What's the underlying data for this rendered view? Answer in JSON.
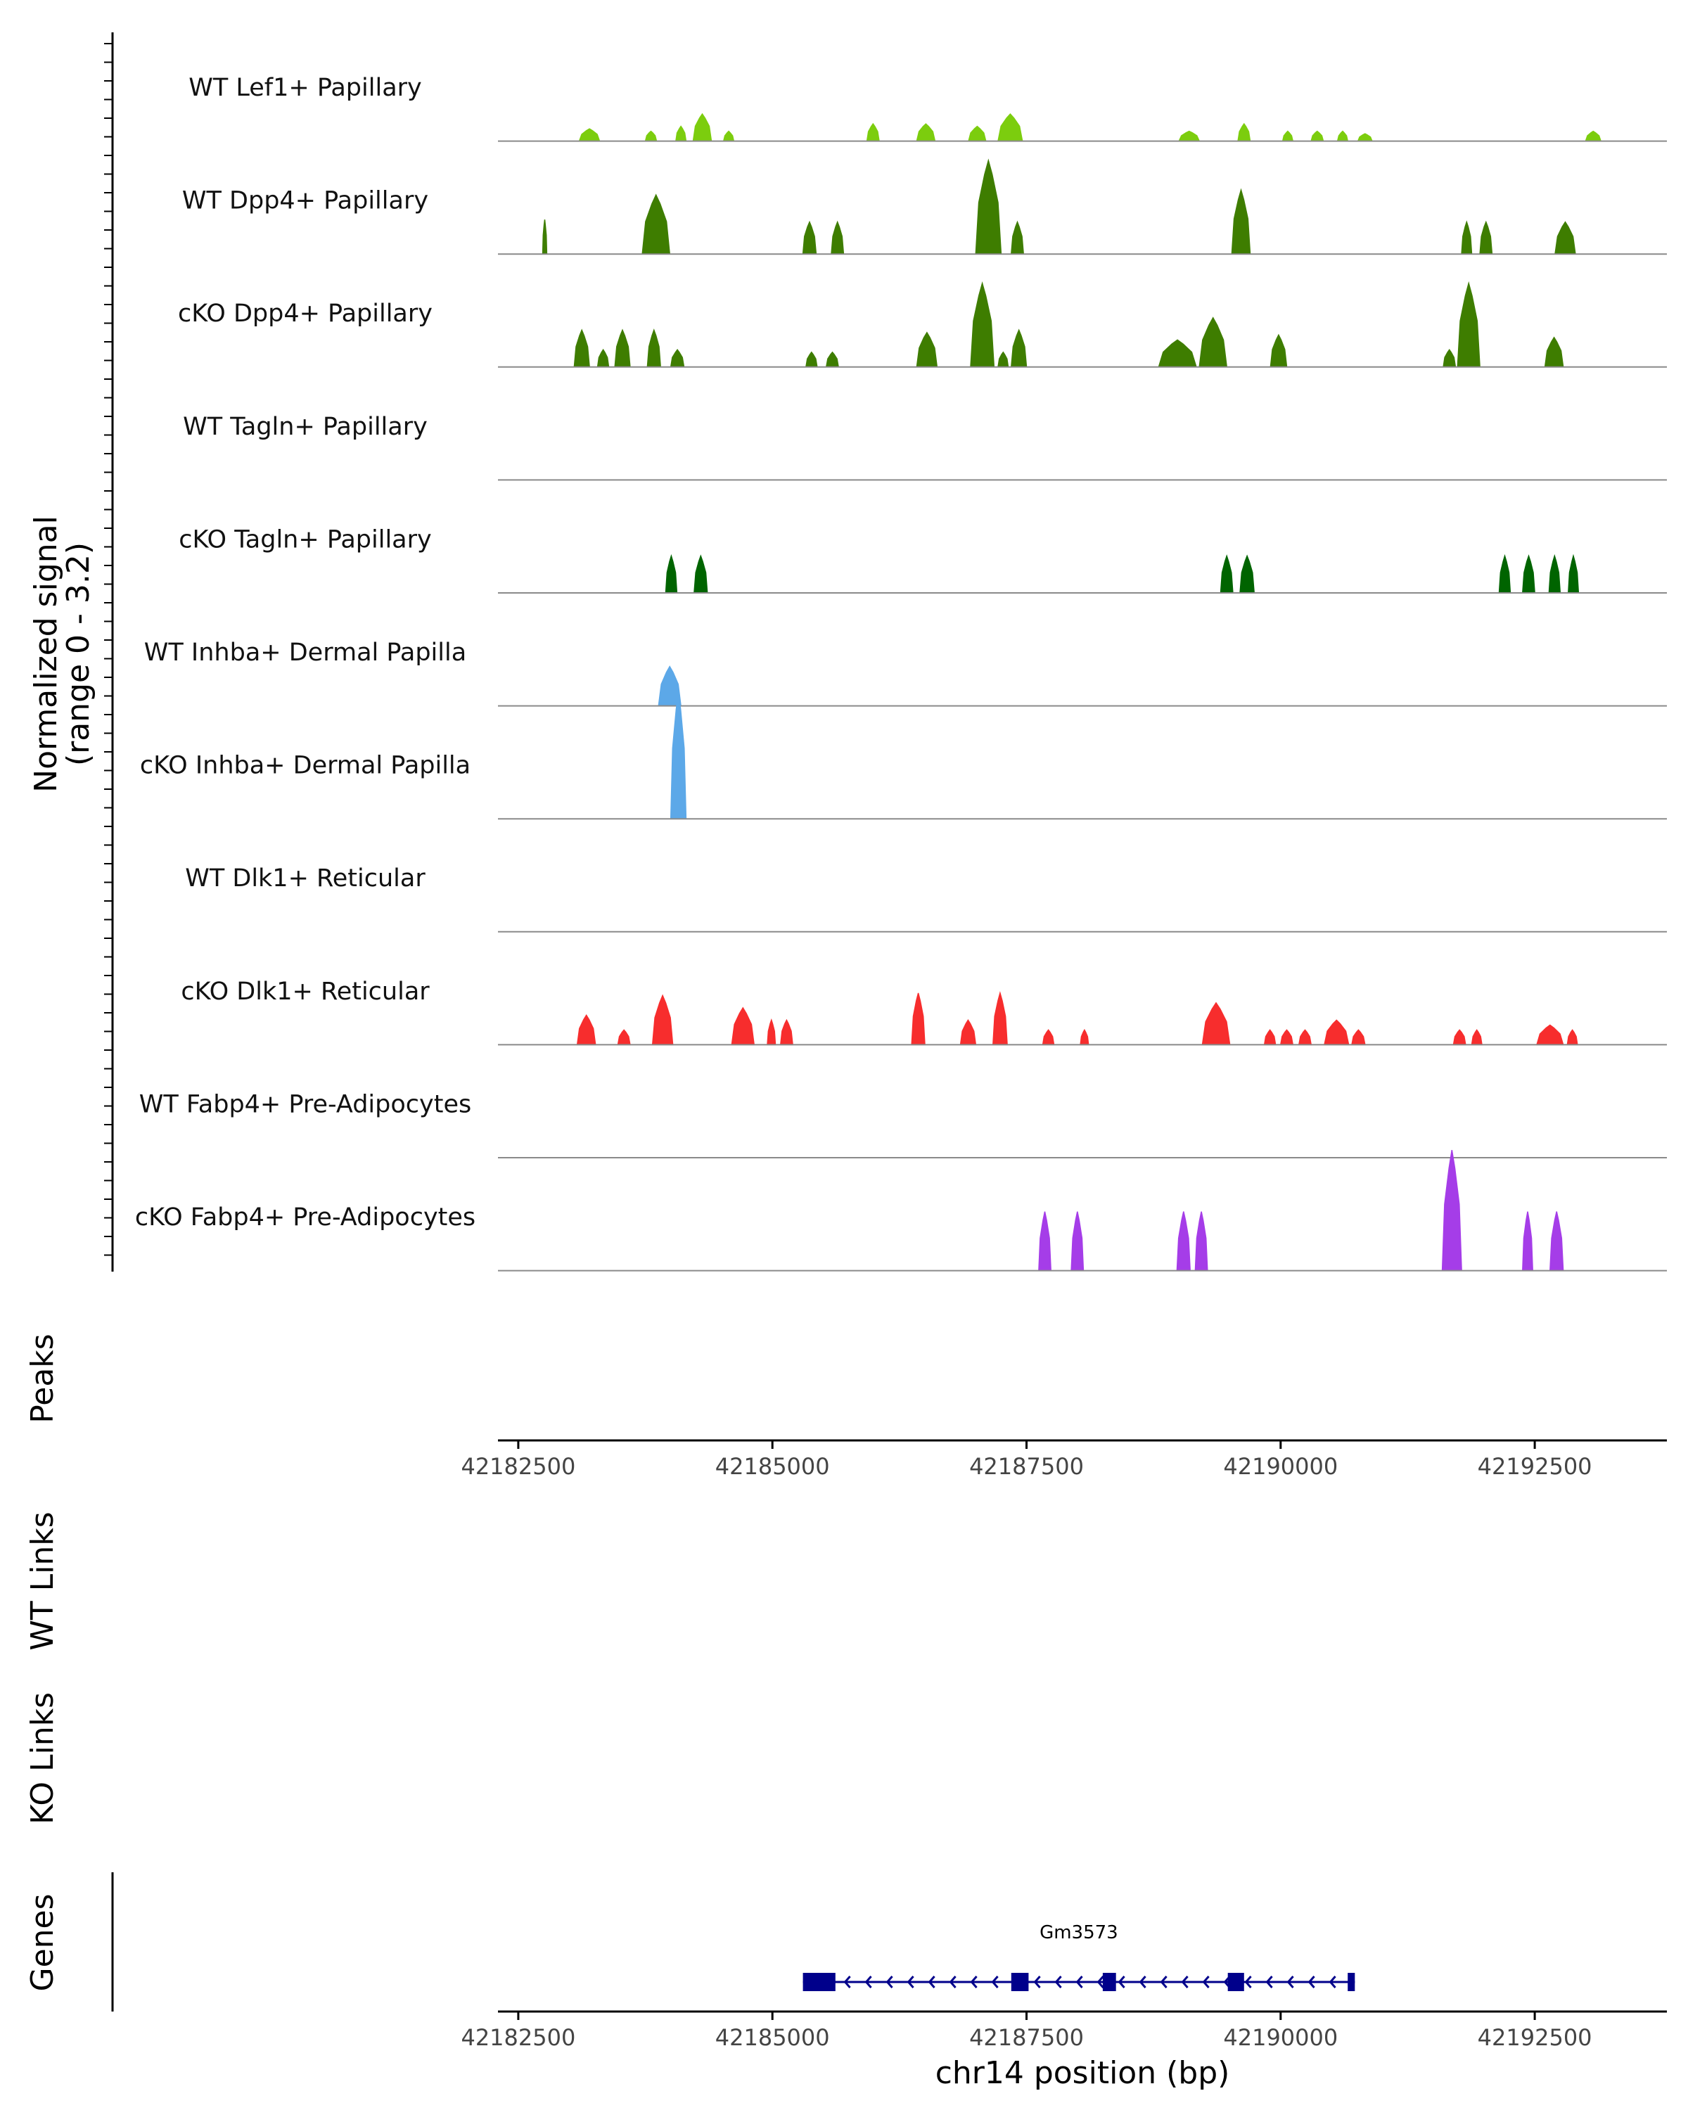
{
  "chart_data": {
    "type": "area",
    "title": "",
    "signal_axis": {
      "label_line1": "Normalized signal",
      "label_line2": "(range 0 - 3.2)",
      "range": [
        0,
        3.2
      ]
    },
    "x": {
      "min": 42182300,
      "max": 42193800,
      "ticks": [
        42182500,
        42185000,
        42187500,
        42190000,
        42192500
      ],
      "tick_labels": [
        "42182500",
        "42185000",
        "42187500",
        "42190000",
        "42192500"
      ],
      "xlabel": "chr14 position (bp)"
    },
    "tracks": [
      {
        "name": "WT Lef1+ Papillary",
        "color": "#7CCD0E",
        "peaks": [
          [
            42183100,
            42183300,
            0.25
          ],
          [
            42183750,
            42183860,
            0.2
          ],
          [
            42184050,
            42184150,
            0.3
          ],
          [
            42184220,
            42184400,
            0.55
          ],
          [
            42184520,
            42184620,
            0.2
          ],
          [
            42185930,
            42186050,
            0.35
          ],
          [
            42186420,
            42186600,
            0.35
          ],
          [
            42186930,
            42187100,
            0.3
          ],
          [
            42187220,
            42187460,
            0.55
          ],
          [
            42189000,
            42189200,
            0.2
          ],
          [
            42189580,
            42189700,
            0.35
          ],
          [
            42190020,
            42190120,
            0.2
          ],
          [
            42190300,
            42190420,
            0.2
          ],
          [
            42190560,
            42190660,
            0.2
          ],
          [
            42190760,
            42190900,
            0.15
          ],
          [
            42193000,
            42193150,
            0.2
          ]
        ]
      },
      {
        "name": "WT Dpp4+ Papillary",
        "color": "#3E7D00",
        "peaks": [
          [
            42182740,
            42182780,
            0.7
          ],
          [
            42183720,
            42183990,
            1.2
          ],
          [
            42185300,
            42185430,
            0.65
          ],
          [
            42185580,
            42185700,
            0.65
          ],
          [
            42187000,
            42187250,
            1.9
          ],
          [
            42187350,
            42187470,
            0.65
          ],
          [
            42189520,
            42189700,
            1.3
          ],
          [
            42191780,
            42191880,
            0.65
          ],
          [
            42191960,
            42192080,
            0.65
          ],
          [
            42192700,
            42192900,
            0.65
          ]
        ]
      },
      {
        "name": "cKO Dpp4+ Papillary",
        "color": "#3E7D00",
        "peaks": [
          [
            42183050,
            42183200,
            0.75
          ],
          [
            42183280,
            42183390,
            0.35
          ],
          [
            42183450,
            42183600,
            0.75
          ],
          [
            42183770,
            42183900,
            0.75
          ],
          [
            42184000,
            42184130,
            0.35
          ],
          [
            42185330,
            42185440,
            0.3
          ],
          [
            42185530,
            42185650,
            0.3
          ],
          [
            42186420,
            42186620,
            0.7
          ],
          [
            42186950,
            42187180,
            1.7
          ],
          [
            42187220,
            42187320,
            0.3
          ],
          [
            42187350,
            42187500,
            0.75
          ],
          [
            42188800,
            42189170,
            0.55
          ],
          [
            42189200,
            42189470,
            1.0
          ],
          [
            42189900,
            42190060,
            0.65
          ],
          [
            42191600,
            42191720,
            0.35
          ],
          [
            42191740,
            42191960,
            1.7
          ],
          [
            42192600,
            42192780,
            0.6
          ]
        ]
      },
      {
        "name": "WT Tagln+ Papillary",
        "color": "#006400",
        "peaks": []
      },
      {
        "name": "cKO Tagln+ Papillary",
        "color": "#006400",
        "peaks": [
          [
            42183950,
            42184060,
            0.75
          ],
          [
            42184230,
            42184360,
            0.75
          ],
          [
            42189410,
            42189530,
            0.75
          ],
          [
            42189600,
            42189740,
            0.75
          ],
          [
            42192150,
            42192260,
            0.75
          ],
          [
            42192380,
            42192500,
            0.75
          ],
          [
            42192640,
            42192750,
            0.75
          ],
          [
            42192830,
            42192930,
            0.75
          ]
        ]
      },
      {
        "name": "WT Inhba+ Dermal Papilla",
        "color": "#5CA8E8",
        "peaks": [
          [
            42183880,
            42184100,
            0.8
          ]
        ]
      },
      {
        "name": "cKO Inhba+ Dermal Papilla",
        "color": "#5CA8E8",
        "peaks": [
          [
            42184000,
            42184150,
            2.6
          ]
        ]
      },
      {
        "name": "WT Dlk1+ Reticular",
        "color": "#F72D2D",
        "peaks": []
      },
      {
        "name": "cKO Dlk1+ Reticular",
        "color": "#F72D2D",
        "peaks": [
          [
            42183080,
            42183260,
            0.6
          ],
          [
            42183480,
            42183600,
            0.3
          ],
          [
            42183820,
            42184020,
            1.0
          ],
          [
            42184600,
            42184820,
            0.75
          ],
          [
            42184950,
            42185030,
            0.5
          ],
          [
            42185080,
            42185200,
            0.5
          ],
          [
            42186370,
            42186500,
            1.05
          ],
          [
            42186850,
            42187000,
            0.5
          ],
          [
            42187170,
            42187310,
            1.05
          ],
          [
            42187660,
            42187770,
            0.3
          ],
          [
            42188030,
            42188110,
            0.3
          ],
          [
            42189230,
            42189500,
            0.85
          ],
          [
            42189840,
            42189950,
            0.3
          ],
          [
            42190000,
            42190120,
            0.3
          ],
          [
            42190180,
            42190300,
            0.3
          ],
          [
            42190430,
            42190670,
            0.5
          ],
          [
            42190700,
            42190830,
            0.3
          ],
          [
            42191700,
            42191820,
            0.3
          ],
          [
            42191880,
            42191980,
            0.3
          ],
          [
            42192520,
            42192780,
            0.4
          ],
          [
            42192820,
            42192920,
            0.3
          ]
        ]
      },
      {
        "name": "WT Fabp4+ Pre-Adipocytes",
        "color": "#A53DE8",
        "peaks": []
      },
      {
        "name": "cKO Fabp4+ Pre-Adipocytes",
        "color": "#A53DE8",
        "peaks": [
          [
            42187620,
            42187740,
            1.2
          ],
          [
            42187940,
            42188060,
            1.2
          ],
          [
            42188980,
            42189110,
            1.2
          ],
          [
            42189160,
            42189280,
            1.2
          ],
          [
            42191590,
            42191780,
            2.45
          ],
          [
            42192380,
            42192480,
            1.2
          ],
          [
            42192650,
            42192780,
            1.2
          ]
        ]
      }
    ],
    "panels": {
      "peaks_label": "Peaks",
      "wt_links_label": "WT Links",
      "ko_links_label": "KO Links",
      "genes_label": "Genes"
    },
    "gene": {
      "name": "Gm3573",
      "color": "#00008B",
      "strand": "-",
      "start": 42185300,
      "end": 42190730,
      "exons": [
        [
          42185300,
          42185620
        ],
        [
          42187350,
          42187520
        ],
        [
          42188250,
          42188380
        ],
        [
          42189480,
          42189640
        ],
        [
          42190660,
          42190730
        ]
      ]
    }
  }
}
